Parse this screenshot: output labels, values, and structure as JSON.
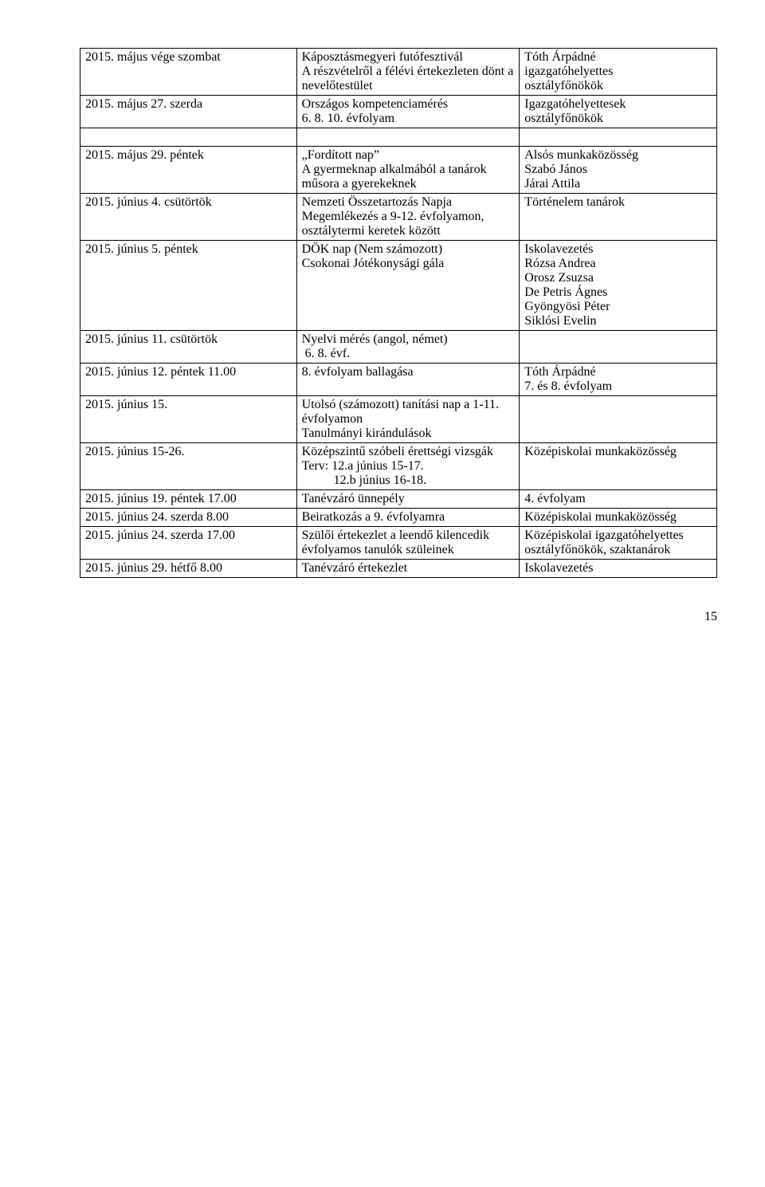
{
  "rows": [
    {
      "date": "2015. május vége szombat",
      "event": "Káposztásmegyeri futófesztivál\nA részvételről a félévi értekezleten dönt a nevelőtestület",
      "responsible": "Tóth Árpádné\nigazgatóhelyettes\nosztályfőnökök"
    },
    {
      "date": "2015. május 27. szerda",
      "event": "Országos kompetenciamérés\n6. 8. 10. évfolyam",
      "responsible": "Igazgatóhelyettesek\nosztályfőnökök"
    },
    {
      "date": "2015. május 29. péntek",
      "event": "„Fordított nap”\nA gyermeknap alkalmából a tanárok műsora a gyerekeknek",
      "responsible": "Alsós munkaközösség\nSzabó János\nJárai Attila"
    },
    {
      "date": "2015. június 4. csütörtök",
      "event": "Nemzeti Összetartozás Napja\nMegemlékezés a 9-12. évfolyamon, osztálytermi keretek között",
      "responsible": "Történelem tanárok"
    },
    {
      "date": "2015. június 5. péntek",
      "event": "DÖK nap (Nem számozott)\nCsokonai Jótékonysági gála",
      "responsible": "Iskolavezetés\nRózsa Andrea\nOrosz Zsuzsa\nDe Petris Ágnes\nGyöngyösi Péter\nSiklósi Evelin"
    },
    {
      "date": "2015. június 11. csütörtök",
      "event": "Nyelvi mérés (angol, német)\n 6. 8. évf.",
      "responsible": ""
    },
    {
      "date": "2015. június 12. péntek 11.00",
      "event": "8. évfolyam ballagása",
      "responsible": "Tóth Árpádné\n7. és 8. évfolyam"
    },
    {
      "date": "2015. június 15.",
      "event": "Utolsó (számozott) tanítási nap a 1-11. évfolyamon\nTanulmányi kirándulások",
      "responsible": ""
    },
    {
      "date": "2015. június 15-26.",
      "event": "Középszintű szóbeli érettségi vizsgák\nTerv: 12.a június 15-17.\n          12.b június 16-18.",
      "responsible": "Középiskolai munkaközösség"
    },
    {
      "date": "2015. június 19. péntek 17.00",
      "event": "Tanévzáró ünnepély",
      "responsible": "4. évfolyam"
    },
    {
      "date": "2015. június 24. szerda 8.00",
      "event": "Beiratkozás a 9. évfolyamra",
      "responsible": "Középiskolai munkaközösség"
    },
    {
      "date": "2015. június 24. szerda 17.00",
      "event": "Szülői értekezlet a leendő kilencedik évfolyamos tanulók szüleinek",
      "responsible": "Középiskolai igazgatóhelyettes\nosztályfőnökök, szaktanárok"
    },
    {
      "date": "2015. június 29. hétfő 8.00",
      "event": "Tanévzáró értekezlet",
      "responsible": "Iskolavezetés"
    }
  ],
  "pageNumber": "15",
  "gapAfterIndex": 1
}
